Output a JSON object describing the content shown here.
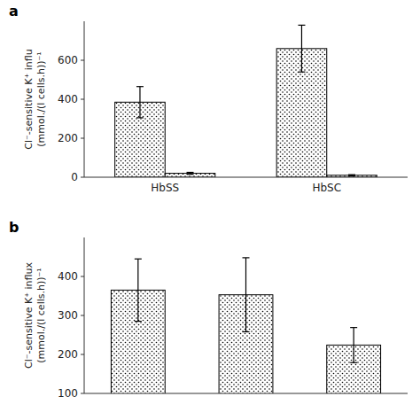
{
  "chart_data": [
    {
      "type": "bar",
      "annotations": [
        "a"
      ],
      "categories": [
        "HbSS",
        "HbSC"
      ],
      "series": [
        {
          "color": "white",
          "values": [
            385,
            660
          ],
          "errors": [
            80,
            120
          ]
        },
        {
          "color": "white",
          "values": [
            20,
            10
          ],
          "errors": [
            5,
            3
          ]
        }
      ],
      "ylabel": "Cl⁻-sensitive K⁺ influ\n(mmol./(l cells.h))⁻¹",
      "ylim": [
        0,
        800
      ],
      "yticks": [
        0,
        200,
        400,
        600
      ],
      "grid": false
    },
    {
      "type": "bar",
      "annotations": [
        "b"
      ],
      "categories": [
        null,
        null,
        null
      ],
      "values": [
        365,
        353,
        224
      ],
      "errors": [
        80,
        95,
        45
      ],
      "color": "white",
      "ylabel": "Cl⁻-sensitive K⁺ influx\n(mmol./(l cells.h))⁻¹",
      "ylim": [
        100,
        500
      ],
      "yticks": [
        100,
        200,
        300,
        400
      ],
      "tick_labels": "y",
      "grid": false
    }
  ]
}
